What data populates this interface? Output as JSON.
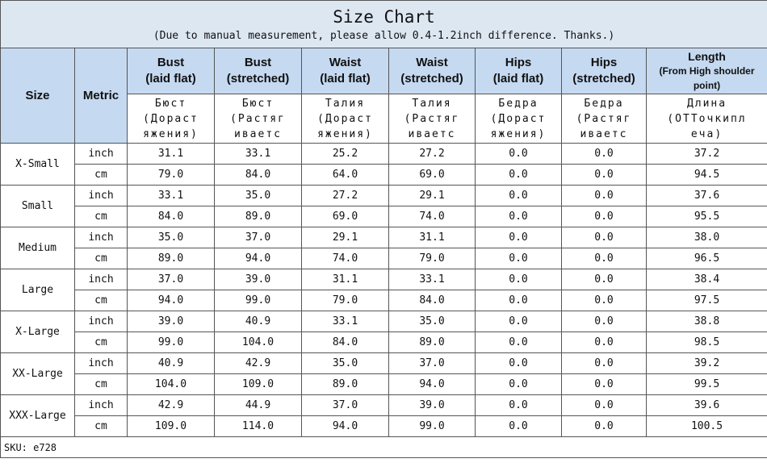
{
  "title": "Size Chart",
  "subtitle": "(Due to manual measurement, please allow 0.4-1.2inch difference. Thanks.)",
  "header": {
    "size": "Size",
    "metric": "Metric",
    "columns": [
      {
        "name": "Bust",
        "note": "(laid flat)",
        "ru": [
          "Бюст",
          "(Дораст",
          "яжения)"
        ]
      },
      {
        "name": "Bust",
        "note": "(stretched)",
        "ru": [
          "Бюст",
          "(Растяг",
          "иваетс"
        ]
      },
      {
        "name": "Waist",
        "note": "(laid flat)",
        "ru": [
          "Талия",
          "(Дораст",
          "яжения)"
        ]
      },
      {
        "name": "Waist",
        "note": "(stretched)",
        "ru": [
          "Талия",
          "(Растяг",
          "иваетс"
        ]
      },
      {
        "name": "Hips",
        "note": "(laid flat)",
        "ru": [
          "Бедра",
          "(Дораст",
          "яжения)"
        ]
      },
      {
        "name": "Hips",
        "note": "(stretched)",
        "ru": [
          "Бедра",
          "(Растяг",
          "иваетс"
        ]
      },
      {
        "name": "Length",
        "note": "(From High shoulder point)",
        "ru": [
          "Длина",
          "(ОТТочкипл",
          "еча)"
        ]
      }
    ]
  },
  "sizes": [
    {
      "name": "X-Small",
      "rows": [
        {
          "metric": "inch",
          "values": [
            "31.1",
            "33.1",
            "25.2",
            "27.2",
            "0.0",
            "0.0",
            "37.2"
          ]
        },
        {
          "metric": "cm",
          "values": [
            "79.0",
            "84.0",
            "64.0",
            "69.0",
            "0.0",
            "0.0",
            "94.5"
          ]
        }
      ]
    },
    {
      "name": "Small",
      "rows": [
        {
          "metric": "inch",
          "values": [
            "33.1",
            "35.0",
            "27.2",
            "29.1",
            "0.0",
            "0.0",
            "37.6"
          ]
        },
        {
          "metric": "cm",
          "values": [
            "84.0",
            "89.0",
            "69.0",
            "74.0",
            "0.0",
            "0.0",
            "95.5"
          ]
        }
      ]
    },
    {
      "name": "Medium",
      "rows": [
        {
          "metric": "inch",
          "values": [
            "35.0",
            "37.0",
            "29.1",
            "31.1",
            "0.0",
            "0.0",
            "38.0"
          ]
        },
        {
          "metric": "cm",
          "values": [
            "89.0",
            "94.0",
            "74.0",
            "79.0",
            "0.0",
            "0.0",
            "96.5"
          ]
        }
      ]
    },
    {
      "name": "Large",
      "rows": [
        {
          "metric": "inch",
          "values": [
            "37.0",
            "39.0",
            "31.1",
            "33.1",
            "0.0",
            "0.0",
            "38.4"
          ]
        },
        {
          "metric": "cm",
          "values": [
            "94.0",
            "99.0",
            "79.0",
            "84.0",
            "0.0",
            "0.0",
            "97.5"
          ]
        }
      ]
    },
    {
      "name": "X-Large",
      "rows": [
        {
          "metric": "inch",
          "values": [
            "39.0",
            "40.9",
            "33.1",
            "35.0",
            "0.0",
            "0.0",
            "38.8"
          ]
        },
        {
          "metric": "cm",
          "values": [
            "99.0",
            "104.0",
            "84.0",
            "89.0",
            "0.0",
            "0.0",
            "98.5"
          ]
        }
      ]
    },
    {
      "name": "XX-Large",
      "rows": [
        {
          "metric": "inch",
          "values": [
            "40.9",
            "42.9",
            "35.0",
            "37.0",
            "0.0",
            "0.0",
            "39.2"
          ]
        },
        {
          "metric": "cm",
          "values": [
            "104.0",
            "109.0",
            "89.0",
            "94.0",
            "0.0",
            "0.0",
            "99.5"
          ]
        }
      ]
    },
    {
      "name": "XXX-Large",
      "rows": [
        {
          "metric": "inch",
          "values": [
            "42.9",
            "44.9",
            "37.0",
            "39.0",
            "0.0",
            "0.0",
            "39.6"
          ]
        },
        {
          "metric": "cm",
          "values": [
            "109.0",
            "114.0",
            "94.0",
            "99.0",
            "0.0",
            "0.0",
            "100.5"
          ]
        }
      ]
    }
  ],
  "sku": "SKU: e728"
}
